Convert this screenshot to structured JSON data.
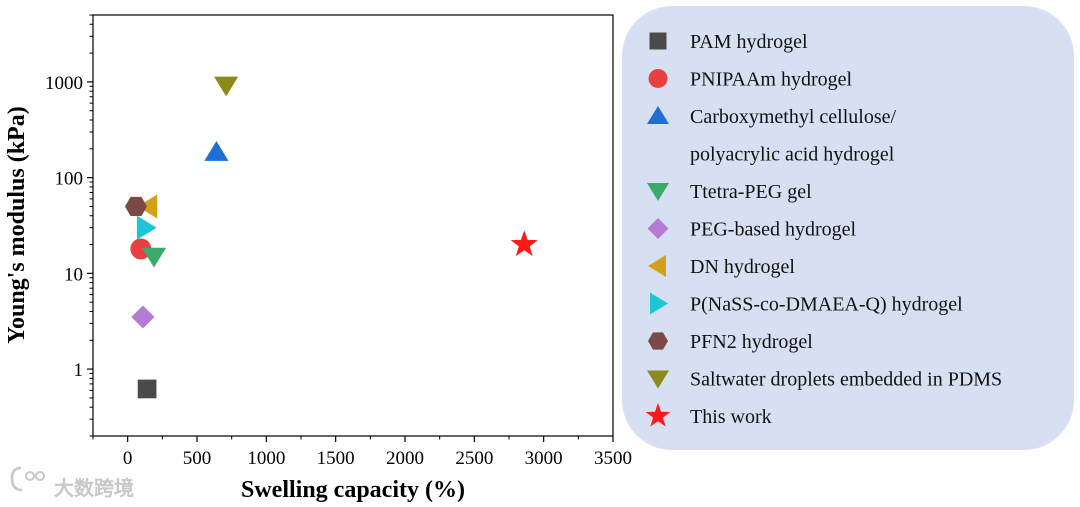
{
  "chart_data": {
    "type": "scatter",
    "xlabel": "Swelling capacity (%)",
    "ylabel": "Young's modulus (kPa)",
    "xlim": [
      -250,
      3500
    ],
    "ylim": [
      0.2,
      5000
    ],
    "y_scale": "log",
    "x_ticks": [
      0,
      500,
      1000,
      1500,
      2000,
      2500,
      3000,
      3500
    ],
    "y_ticks": [
      1,
      10,
      100,
      1000
    ],
    "y_tick_labels": [
      "1",
      "10",
      "100",
      "1000"
    ],
    "grid": false,
    "legend_position": "right",
    "series": [
      {
        "name": "PAM hydrogel",
        "marker": "square",
        "color": "#4a4a4a",
        "points": [
          [
            140,
            0.62
          ]
        ]
      },
      {
        "name": "PNIPAAm hydrogel",
        "marker": "circle",
        "color": "#e84040",
        "points": [
          [
            95,
            18
          ]
        ]
      },
      {
        "name": "Carboxymethyl cellulose/",
        "name_line2": "polyacrylic acid hydrogel",
        "marker": "triangle-up",
        "color": "#1f6fd6",
        "points": [
          [
            640,
            185
          ]
        ]
      },
      {
        "name": "Ttetra-PEG gel",
        "marker": "triangle-down",
        "color": "#3aaa6c",
        "points": [
          [
            190,
            15
          ]
        ]
      },
      {
        "name": "PEG-based hydrogel",
        "marker": "diamond",
        "color": "#b57ad6",
        "points": [
          [
            110,
            3.5
          ]
        ]
      },
      {
        "name": "DN hydrogel",
        "marker": "triangle-left",
        "color": "#d4a017",
        "points": [
          [
            150,
            50
          ]
        ]
      },
      {
        "name": "P(NaSS-co-DMAEA-Q) hydrogel",
        "marker": "triangle-right",
        "color": "#1cc6d6",
        "points": [
          [
            130,
            30
          ]
        ]
      },
      {
        "name": "PFN2 hydrogel",
        "marker": "hexagon",
        "color": "#7b4a45",
        "points": [
          [
            60,
            50
          ]
        ]
      },
      {
        "name": "Saltwater droplets embedded in PDMS",
        "marker": "triangle-down",
        "color": "#8c8a1a",
        "points": [
          [
            710,
            920
          ]
        ]
      },
      {
        "name": "This work",
        "marker": "star",
        "color": "#ff1a1a",
        "points": [
          [
            2860,
            20
          ]
        ]
      }
    ]
  },
  "colors": {
    "legend_background": "#d6e0f2",
    "axis": "#000000",
    "watermark": "#c8c8c8"
  },
  "watermark": {
    "text": "大数跨境",
    "icon": "watermark-logo-icon"
  }
}
